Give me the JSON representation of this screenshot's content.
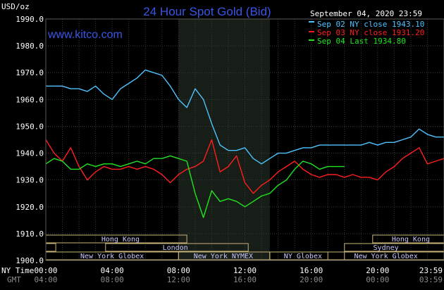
{
  "header": {
    "title": "24 Hour Spot Gold (Bid)",
    "website": "www.kitco.com",
    "date": "September 04, 2020 23:59",
    "y_unit": "USD/oz",
    "ny_time_label": "NY Time",
    "gmt_label": "GMT"
  },
  "colors": {
    "background": "#000000",
    "grid": "#3a3a3a",
    "title": "#3a55e6",
    "series_sep02": "#4dc3ff",
    "series_sep03": "#ff1e1e",
    "series_sep04": "#1ee61e",
    "highlight": "#171d17",
    "session_box": "#c8b478"
  },
  "sessions": {
    "row1": [
      "Hong Kong",
      "Hong Kong"
    ],
    "row2": [
      "London",
      "Sydney"
    ],
    "row3": [
      "New York Globex",
      "New York NYMEX",
      "NY Globex",
      "New York Globex"
    ]
  },
  "chart_data": {
    "type": "line",
    "title": "24 Hour Spot Gold (Bid)",
    "ylabel": "USD/oz",
    "xlim": [
      0,
      24
    ],
    "ylim": [
      1900,
      1990
    ],
    "y_ticks": [
      "1990.0",
      "1980.0",
      "1970.0",
      "1960.0",
      "1950.0",
      "1940.0",
      "1930.0",
      "1920.0",
      "1910.0",
      "1900.0"
    ],
    "x_ticks_ny": [
      "00:00",
      "04:00",
      "08:00",
      "12:00",
      "16:00",
      "20:00",
      "23:59"
    ],
    "x_ticks_gmt": [
      "04:00",
      "08:00",
      "12:00",
      "16:00",
      "20:00",
      "00:00",
      "03:59"
    ],
    "grid": true,
    "legend_position": "top-right",
    "series": [
      {
        "name": "Sep 02 NY close 1943.10",
        "color": "#4dc3ff",
        "x": [
          0,
          0.5,
          1,
          1.5,
          2,
          2.5,
          3,
          3.5,
          4,
          4.5,
          5,
          5.5,
          6,
          6.5,
          7,
          7.5,
          8,
          8.5,
          9,
          9.5,
          10,
          10.5,
          11,
          11.5,
          12,
          12.5,
          13,
          13.5,
          14,
          14.5,
          15,
          15.5,
          16,
          16.5,
          17,
          17.5,
          18,
          18.5,
          19,
          19.5,
          20,
          20.5,
          21,
          21.5,
          22,
          22.5,
          23,
          23.5,
          24
        ],
        "y": [
          1965,
          1965,
          1965,
          1964,
          1964,
          1963,
          1965,
          1962,
          1960,
          1964,
          1966,
          1968,
          1971,
          1970,
          1969,
          1965,
          1960,
          1957,
          1964,
          1960,
          1951,
          1943,
          1941,
          1941,
          1942,
          1938,
          1936,
          1938,
          1940,
          1940,
          1941,
          1942,
          1942,
          1943,
          1943,
          1943,
          1943,
          1943,
          1943,
          1944,
          1943,
          1944,
          1944,
          1945,
          1946,
          1949,
          1947,
          1946,
          1946
        ]
      },
      {
        "name": "Sep 03 NY close 1931.20",
        "color": "#ff1e1e",
        "x": [
          0,
          0.5,
          1,
          1.5,
          2,
          2.5,
          3,
          3.5,
          4,
          4.5,
          5,
          5.5,
          6,
          6.5,
          7,
          7.5,
          8,
          8.5,
          9,
          9.5,
          10,
          10.5,
          11,
          11.5,
          12,
          12.5,
          13,
          13.5,
          14,
          14.5,
          15,
          15.5,
          16,
          16.5,
          17,
          17.5,
          18,
          18.5,
          19,
          19.5,
          20,
          20.5,
          21,
          21.5,
          22,
          22.5,
          23,
          23.5,
          24
        ],
        "y": [
          1945,
          1940,
          1937,
          1942,
          1935,
          1930,
          1933,
          1935,
          1934,
          1934,
          1935,
          1934,
          1935,
          1934,
          1932,
          1929,
          1932,
          1934,
          1935,
          1937,
          1945,
          1933,
          1935,
          1939,
          1929,
          1925,
          1928,
          1930,
          1933,
          1935,
          1937,
          1934,
          1932,
          1931,
          1932,
          1932,
          1931,
          1932,
          1931,
          1931,
          1930,
          1933,
          1935,
          1938,
          1940,
          1942,
          1936,
          1937,
          1938
        ]
      },
      {
        "name": "Sep 04 Last 1934.80",
        "color": "#1ee61e",
        "x": [
          0,
          0.5,
          1,
          1.5,
          2,
          2.5,
          3,
          3.5,
          4,
          4.5,
          5,
          5.5,
          6,
          6.5,
          7,
          7.5,
          8,
          8.5,
          9,
          9.5,
          10,
          10.5,
          11,
          11.5,
          12,
          12.5,
          13,
          13.5,
          14,
          14.5,
          15,
          15.5,
          16,
          16.5,
          17,
          17.5,
          18
        ],
        "y": [
          1936,
          1938,
          1937,
          1934,
          1934,
          1936,
          1935,
          1936,
          1936,
          1935,
          1936,
          1937,
          1936,
          1938,
          1938,
          1939,
          1938,
          1937,
          1925,
          1916,
          1926,
          1922,
          1923,
          1922,
          1920,
          1922,
          1924,
          1925,
          1928,
          1930,
          1934,
          1937,
          1936,
          1934,
          1935,
          1935,
          1935
        ]
      }
    ]
  }
}
